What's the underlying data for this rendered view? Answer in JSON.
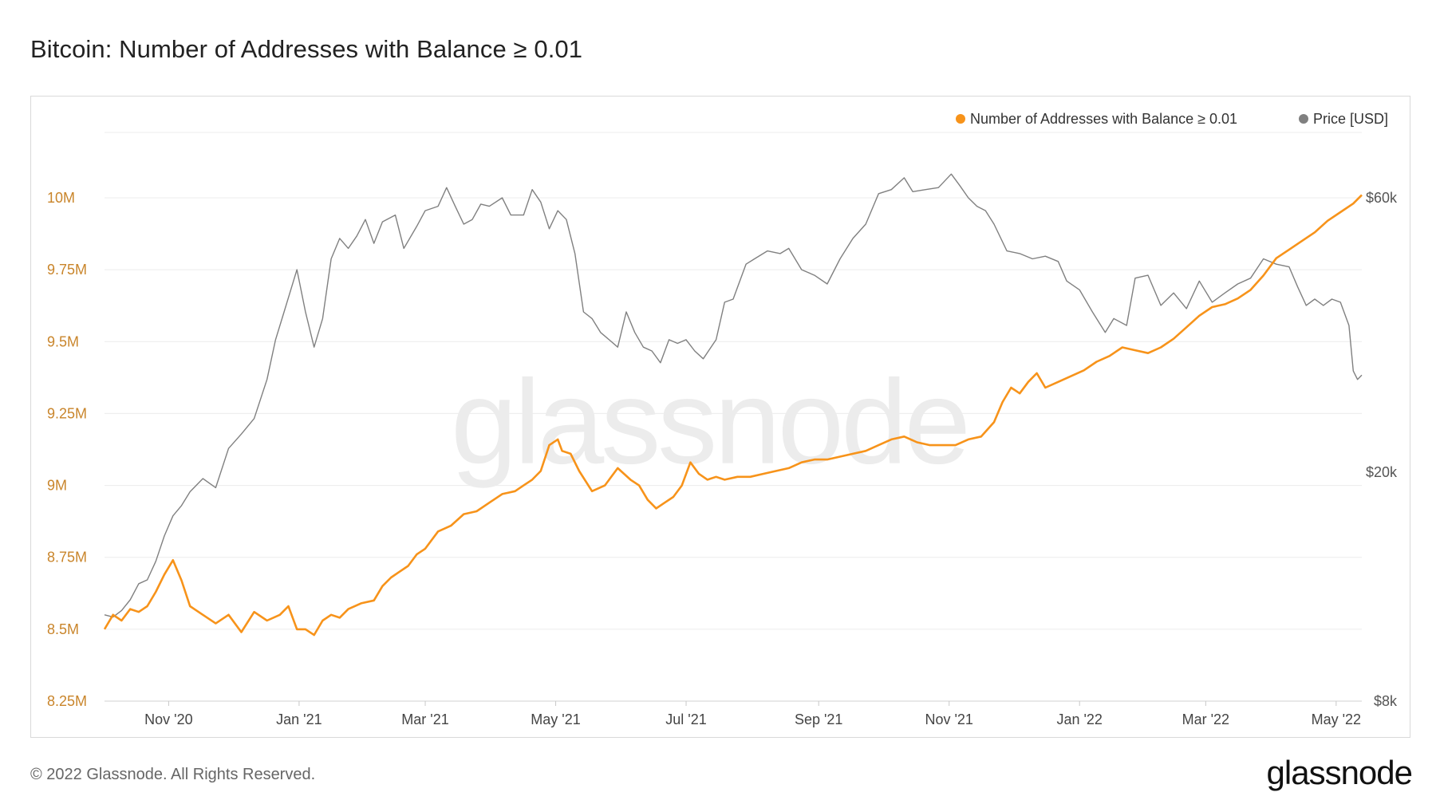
{
  "header": {
    "title": "Bitcoin: Number of Addresses with Balance ≥ 0.01"
  },
  "footer": {
    "copyright": "© 2022 Glassnode. All Rights Reserved.",
    "logo": "glassnode"
  },
  "watermark": "glassnode",
  "colors": {
    "addresses": "#f7931a",
    "price": "#808080",
    "axisLeft": "#c9852b",
    "grid": "#ececec"
  },
  "chart_data": {
    "type": "line",
    "title": "Bitcoin: Number of Addresses with Balance ≥ 0.01",
    "x_ticks": [
      "Nov '20",
      "Jan '21",
      "Mar '21",
      "May '21",
      "Jul '21",
      "Sep '21",
      "Nov '21",
      "Jan '22",
      "Mar '22",
      "May '22"
    ],
    "x_tick_positions_days": [
      30,
      91,
      150,
      211,
      272,
      334,
      395,
      456,
      515,
      576
    ],
    "x_range_days": [
      0,
      588
    ],
    "left_axis": {
      "ticks": [
        8.25,
        8.5,
        8.75,
        9.0,
        9.25,
        9.5,
        9.75,
        10.0
      ],
      "tick_labels": [
        "8.25M",
        "8.5M",
        "8.75M",
        "9M",
        "9.25M",
        "9.5M",
        "9.75M",
        "10M"
      ],
      "range": [
        8.25,
        10.0
      ],
      "unit": "millions"
    },
    "right_axis": {
      "scale": "log",
      "ticks": [
        8000,
        20000,
        60000
      ],
      "tick_labels": [
        "$8k",
        "$20k",
        "$60k"
      ],
      "range": [
        8000,
        60000
      ]
    },
    "legend": [
      "Number of Addresses with Balance ≥ 0.01",
      "Price [USD]"
    ],
    "series": [
      {
        "name": "Number of Addresses with Balance ≥ 0.01",
        "axis": "left",
        "x": [
          0,
          4,
          8,
          12,
          16,
          20,
          24,
          28,
          32,
          36,
          40,
          46,
          52,
          58,
          64,
          70,
          76,
          82,
          86,
          90,
          94,
          98,
          102,
          106,
          110,
          114,
          120,
          126,
          130,
          134,
          138,
          142,
          146,
          150,
          156,
          162,
          168,
          174,
          180,
          186,
          192,
          196,
          200,
          204,
          208,
          212,
          214,
          218,
          222,
          228,
          234,
          240,
          246,
          250,
          254,
          258,
          262,
          266,
          270,
          274,
          278,
          282,
          286,
          290,
          296,
          302,
          308,
          314,
          320,
          326,
          332,
          338,
          344,
          350,
          356,
          362,
          368,
          374,
          380,
          386,
          392,
          398,
          404,
          410,
          416,
          420,
          424,
          428,
          432,
          436,
          440,
          446,
          452,
          458,
          464,
          470,
          476,
          482,
          488,
          494,
          500,
          506,
          512,
          518,
          524,
          530,
          536,
          542,
          548,
          554,
          560,
          566,
          572,
          578,
          584,
          588
        ],
        "values": [
          8.5,
          8.55,
          8.53,
          8.57,
          8.56,
          8.58,
          8.63,
          8.69,
          8.74,
          8.67,
          8.58,
          8.55,
          8.52,
          8.55,
          8.49,
          8.56,
          8.53,
          8.55,
          8.58,
          8.5,
          8.5,
          8.48,
          8.53,
          8.55,
          8.54,
          8.57,
          8.59,
          8.6,
          8.65,
          8.68,
          8.7,
          8.72,
          8.76,
          8.78,
          8.84,
          8.86,
          8.9,
          8.91,
          8.94,
          8.97,
          8.98,
          9.0,
          9.02,
          9.05,
          9.14,
          9.16,
          9.12,
          9.11,
          9.05,
          8.98,
          9.0,
          9.06,
          9.02,
          9.0,
          8.95,
          8.92,
          8.94,
          8.96,
          9.0,
          9.08,
          9.04,
          9.02,
          9.03,
          9.02,
          9.03,
          9.03,
          9.04,
          9.05,
          9.06,
          9.08,
          9.09,
          9.09,
          9.1,
          9.11,
          9.12,
          9.14,
          9.16,
          9.17,
          9.15,
          9.14,
          9.14,
          9.14,
          9.16,
          9.17,
          9.22,
          9.29,
          9.34,
          9.32,
          9.36,
          9.39,
          9.34,
          9.36,
          9.38,
          9.4,
          9.43,
          9.45,
          9.48,
          9.47,
          9.46,
          9.48,
          9.51,
          9.55,
          9.59,
          9.62,
          9.63,
          9.65,
          9.68,
          9.73,
          9.79,
          9.82,
          9.85,
          9.88,
          9.92,
          9.95,
          9.98,
          10.01
        ]
      },
      {
        "name": "Price [USD]",
        "axis": "right",
        "x": [
          0,
          4,
          8,
          12,
          16,
          20,
          24,
          28,
          32,
          36,
          40,
          46,
          52,
          58,
          64,
          70,
          76,
          80,
          84,
          90,
          94,
          98,
          102,
          106,
          110,
          114,
          118,
          122,
          126,
          130,
          136,
          140,
          146,
          150,
          156,
          160,
          164,
          168,
          172,
          176,
          180,
          186,
          190,
          196,
          200,
          204,
          208,
          212,
          216,
          220,
          224,
          228,
          232,
          236,
          240,
          244,
          248,
          252,
          256,
          260,
          264,
          268,
          272,
          276,
          280,
          286,
          290,
          294,
          300,
          304,
          310,
          316,
          320,
          326,
          332,
          338,
          344,
          350,
          356,
          362,
          368,
          374,
          378,
          384,
          390,
          396,
          400,
          404,
          408,
          412,
          416,
          422,
          428,
          434,
          440,
          446,
          450,
          456,
          462,
          468,
          472,
          478,
          482,
          488,
          494,
          500,
          506,
          512,
          518,
          524,
          530,
          536,
          542,
          548,
          554,
          558,
          562,
          566,
          570,
          574,
          578,
          582,
          584,
          586,
          588
        ],
        "values": [
          11300,
          11200,
          11500,
          12000,
          12800,
          13000,
          14000,
          15500,
          16800,
          17500,
          18500,
          19500,
          18800,
          22000,
          23300,
          24800,
          29000,
          34000,
          38000,
          45000,
          38000,
          33000,
          37000,
          47000,
          51000,
          49000,
          51500,
          55000,
          50000,
          54500,
          56000,
          49000,
          53500,
          57000,
          58000,
          62500,
          58000,
          54000,
          55000,
          58500,
          58000,
          60000,
          56000,
          56000,
          62000,
          59000,
          53000,
          57000,
          55000,
          48000,
          38000,
          37000,
          35000,
          34000,
          33000,
          38000,
          35000,
          33000,
          32500,
          31000,
          34000,
          33500,
          34000,
          32500,
          31500,
          34000,
          39500,
          40000,
          46000,
          47000,
          48500,
          48000,
          49000,
          45000,
          44000,
          42500,
          47000,
          51000,
          54000,
          61000,
          62000,
          65000,
          61500,
          62000,
          62500,
          66000,
          63000,
          60000,
          58000,
          57000,
          54000,
          48500,
          48000,
          47000,
          47500,
          46500,
          43000,
          41500,
          38000,
          35000,
          37000,
          36000,
          43500,
          44000,
          39000,
          41000,
          38500,
          43000,
          39500,
          41000,
          42500,
          43500,
          47000,
          46000,
          45500,
          42000,
          39000,
          40000,
          39000,
          40000,
          39500,
          36000,
          30000,
          29000,
          29500
        ]
      }
    ]
  }
}
